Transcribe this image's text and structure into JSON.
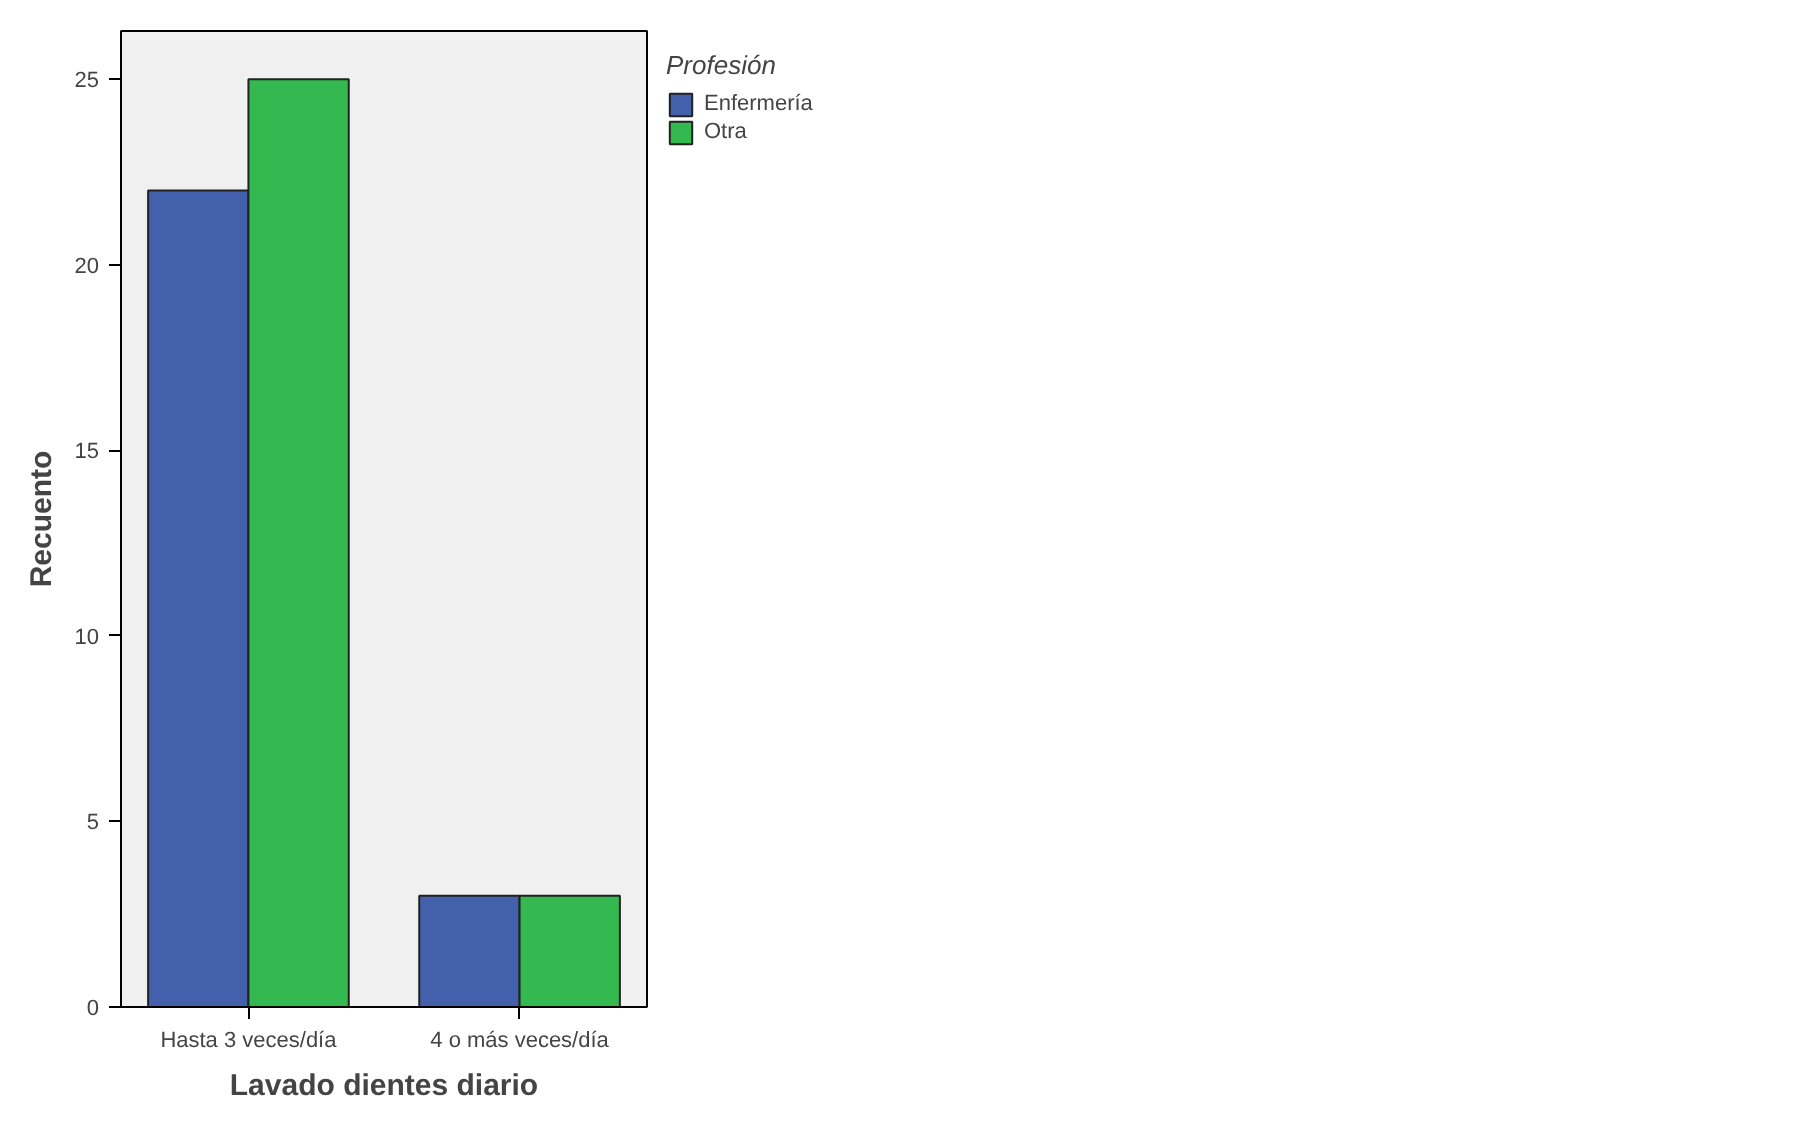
{
  "chart_data": {
    "type": "bar",
    "xlabel": "Lavado dientes diario",
    "ylabel": "Recuento",
    "legend_title": "Profesión",
    "categories": [
      "Hasta 3 veces/día",
      "4 o más veces/día"
    ],
    "series": [
      {
        "name": "Enfermería",
        "color": "#4360ad",
        "values": [
          22,
          3
        ]
      },
      {
        "name": "Otra",
        "color": "#33b950",
        "values": [
          25,
          3
        ]
      }
    ],
    "ylim": [
      0,
      26.3
    ],
    "yticks": [
      0,
      5,
      10,
      15,
      20,
      25
    ],
    "grid": false,
    "legend": "top right"
  }
}
